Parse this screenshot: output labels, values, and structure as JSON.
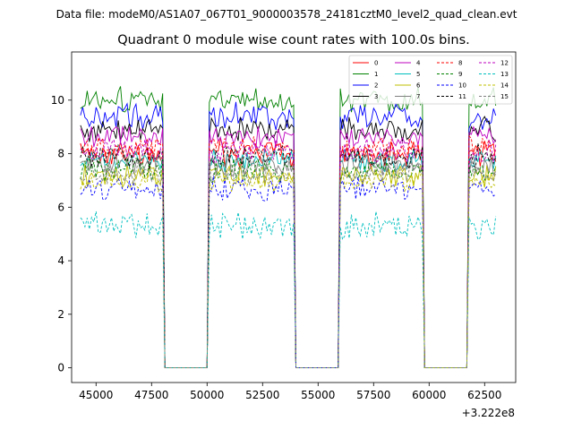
{
  "chart_data": {
    "type": "line",
    "suptitle": "Data file: modeM0/AS1A07_067T01_9000003578_24181cztM0_level2_quad_clean.evt",
    "title": "Quadrant 0 module wise count rates with 100.0s bins.",
    "xlabel": "",
    "ylabel": "",
    "x_offset_label": "+3.222e8",
    "xlim": [
      43900,
      63900
    ],
    "ylim": [
      -0.55,
      11.8
    ],
    "xticks": [
      45000,
      47500,
      50000,
      52500,
      55000,
      57500,
      60000,
      62500
    ],
    "xtick_labels": [
      "45000",
      "47500",
      "50000",
      "52500",
      "55000",
      "57500",
      "60000",
      "62500"
    ],
    "yticks": [
      0,
      2,
      4,
      6,
      8,
      10
    ],
    "ytick_labels": [
      "0",
      "2",
      "4",
      "6",
      "8",
      "10"
    ],
    "bin_seconds": 100,
    "x_start": 44300,
    "x_end": 63000,
    "on_segments": [
      [
        44300,
        48000
      ],
      [
        50100,
        53900
      ],
      [
        56000,
        59700
      ],
      [
        61800,
        63000
      ]
    ],
    "gap_value": 0,
    "legend_position": "top-right",
    "legend_columns": 4,
    "series": [
      {
        "name": "0",
        "color": "#ff0000",
        "dash": "solid",
        "mean": 8.0,
        "spread": 0.35
      },
      {
        "name": "1",
        "color": "#008000",
        "dash": "solid",
        "mean": 10.0,
        "spread": 0.35
      },
      {
        "name": "2",
        "color": "#0000ff",
        "dash": "solid",
        "mean": 9.4,
        "spread": 0.35
      },
      {
        "name": "3",
        "color": "#000000",
        "dash": "solid",
        "mean": 8.9,
        "spread": 0.3
      },
      {
        "name": "4",
        "color": "#bf00bf",
        "dash": "solid",
        "mean": 8.6,
        "spread": 0.3
      },
      {
        "name": "5",
        "color": "#00bfbf",
        "dash": "solid",
        "mean": 7.8,
        "spread": 0.3
      },
      {
        "name": "6",
        "color": "#bfbf00",
        "dash": "solid",
        "mean": 7.2,
        "spread": 0.3
      },
      {
        "name": "7",
        "color": "#808080",
        "dash": "solid",
        "mean": 7.6,
        "spread": 0.3
      },
      {
        "name": "8",
        "color": "#ff0000",
        "dash": "dashed",
        "mean": 8.2,
        "spread": 0.3
      },
      {
        "name": "9",
        "color": "#008000",
        "dash": "dashed",
        "mean": 7.4,
        "spread": 0.3
      },
      {
        "name": "10",
        "color": "#0000ff",
        "dash": "dashed",
        "mean": 6.7,
        "spread": 0.3
      },
      {
        "name": "11",
        "color": "#000000",
        "dash": "dashed",
        "mean": 7.9,
        "spread": 0.3
      },
      {
        "name": "12",
        "color": "#bf00bf",
        "dash": "dashed",
        "mean": 8.1,
        "spread": 0.3
      },
      {
        "name": "13",
        "color": "#00bfbf",
        "dash": "dashed",
        "mean": 5.3,
        "spread": 0.35
      },
      {
        "name": "14",
        "color": "#bfbf00",
        "dash": "dashed",
        "mean": 7.0,
        "spread": 0.3
      },
      {
        "name": "15",
        "color": "#808080",
        "dash": "dashed",
        "mean": 7.3,
        "spread": 0.3
      }
    ]
  }
}
